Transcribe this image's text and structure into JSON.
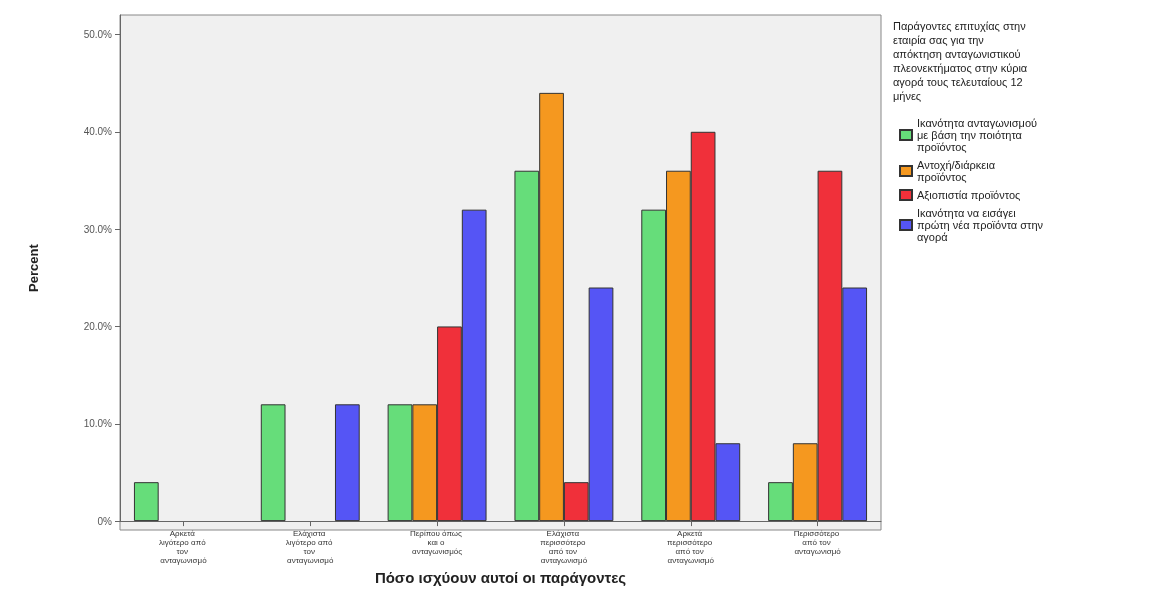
{
  "chart_data": {
    "type": "bar",
    "xlabel": "Πόσο ισχύουν αυτοί οι παράγοντες",
    "ylabel": "Percent",
    "legend_title": "Παράγοντες επιτυχίας στην εταιρία σας για την απόκτηση ανταγωνιστικού πλεονεκτήματος στην κύρια αγορά τους τελευταίους 12 μήνες",
    "legend": "top right",
    "grid": false,
    "categories": [
      "Αρκετά λιγότερο από τον ανταγωνισμό",
      "Ελάχιστα λιγότερο από τον ανταγωνισμό",
      "Περίπου όπως και ο ανταγωνισμός",
      "Ελάχιστα περισσότερο από τον ανταγωνισμό",
      "Αρκετά περισσότερο από τον ανταγωνισμό",
      "Περισσότερο από τον ανταγωνισμό"
    ],
    "ylim": [
      0,
      52
    ],
    "yticks": [
      {
        "value": 0,
        "label": "0%"
      },
      {
        "value": 10,
        "label": "10.0%"
      },
      {
        "value": 20,
        "label": "20.0%"
      },
      {
        "value": 30,
        "label": "30.0%"
      },
      {
        "value": 40,
        "label": "40.0%"
      },
      {
        "value": 50,
        "label": "50.0%"
      }
    ],
    "series": [
      {
        "name": "Ικανότητα ανταγωνισμού με βάση την ποιότητα προϊόντος",
        "color": "#66dd7a",
        "values": [
          4,
          12,
          12,
          36,
          32,
          4
        ]
      },
      {
        "name": "Αντοχή/διάρκεια προϊόντος",
        "color": "#f5981f",
        "values": [
          null,
          null,
          12,
          44,
          36,
          8
        ]
      },
      {
        "name": "Αξιοπιστία προϊόντος",
        "color": "#f0303a",
        "values": [
          null,
          null,
          20,
          4,
          40,
          36
        ]
      },
      {
        "name": "Ικανότητα να εισάγει πρώτη νέα προϊόντα στην αγορά",
        "color": "#5555f5",
        "values": [
          null,
          12,
          32,
          24,
          8,
          24
        ]
      }
    ]
  }
}
